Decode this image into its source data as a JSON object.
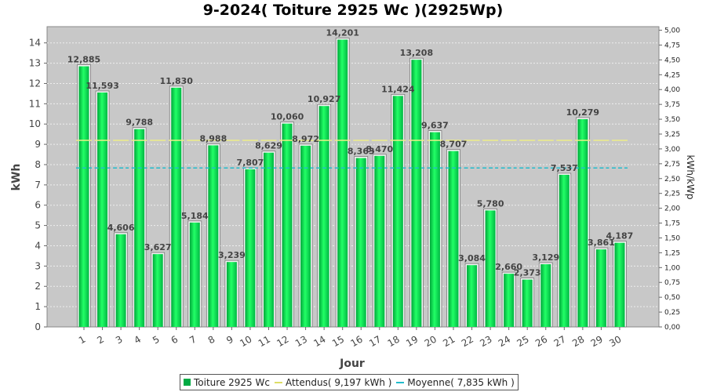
{
  "chart_data": {
    "type": "bar",
    "title": "9-2024( Toiture 2925 Wc )(2925Wp)",
    "xlabel": "Jour",
    "ylabel": "kWh",
    "y2label": "kWh/kWp",
    "ylim": [
      0,
      14.8
    ],
    "y2lim": [
      0,
      5.06
    ],
    "yticks": [
      "0",
      "1",
      "2",
      "3",
      "4",
      "5",
      "6",
      "7",
      "8",
      "9",
      "10",
      "11",
      "12",
      "13",
      "14"
    ],
    "y2ticks": [
      "0,00",
      "0,25",
      "0,50",
      "0,75",
      "1,00",
      "1,25",
      "1,50",
      "1,75",
      "2,00",
      "2,25",
      "2,50",
      "2,75",
      "3,00",
      "3,25",
      "3,50",
      "3,75",
      "4,00",
      "4,25",
      "4,50",
      "4,75",
      "5,00"
    ],
    "categories": [
      "1",
      "2",
      "3",
      "4",
      "5",
      "6",
      "7",
      "8",
      "9",
      "10",
      "11",
      "12",
      "13",
      "14",
      "15",
      "16",
      "17",
      "18",
      "19",
      "20",
      "21",
      "22",
      "23",
      "24",
      "25",
      "26",
      "27",
      "28",
      "29",
      "30"
    ],
    "series": [
      {
        "name": "Toiture 2925 Wc",
        "color": "#00dd44",
        "values": [
          12.885,
          11.593,
          4.606,
          9.788,
          3.627,
          11.83,
          5.184,
          8.988,
          3.239,
          7.807,
          8.629,
          10.06,
          8.972,
          10.927,
          14.201,
          8.363,
          8.47,
          11.424,
          13.208,
          9.637,
          8.707,
          3.084,
          5.78,
          2.66,
          2.373,
          3.129,
          7.537,
          10.279,
          3.861,
          4.187
        ],
        "labels": [
          "12,885",
          "11,593",
          "4,606",
          "9,788",
          "3,627",
          "11,830",
          "5,184",
          "8,988",
          "3,239",
          "7,807",
          "8,629",
          "10,060",
          "8,972",
          "10,927",
          "14,201",
          "8,363",
          "8,470",
          "11,424",
          "13,208",
          "9,637",
          "8,707",
          "3,084",
          "5,780",
          "2,660",
          "2,373",
          "3,129",
          "7,537",
          "10,279",
          "3,861",
          "4,187"
        ]
      }
    ],
    "reference_lines": [
      {
        "name": "Attendus( 9,197 kWh )",
        "value": 9.197,
        "color": "#eeee88",
        "style": "solid"
      },
      {
        "name": "Moyenne( 7,835 kWh )",
        "value": 7.835,
        "color": "#22bbcc",
        "style": "dashed"
      }
    ],
    "legend": "bottom",
    "grid": true
  }
}
